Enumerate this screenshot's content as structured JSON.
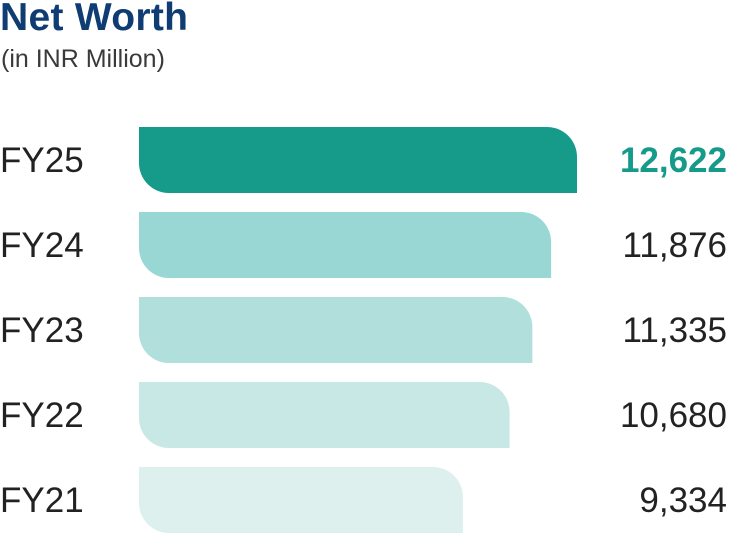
{
  "header": {
    "title": "Net Worth",
    "subtitle": "(in INR Million)"
  },
  "chart_data": {
    "type": "bar",
    "orientation": "horizontal",
    "title": "Net Worth",
    "subtitle": "(in INR Million)",
    "categories": [
      "FY25",
      "FY24",
      "FY23",
      "FY22",
      "FY21"
    ],
    "values": [
      12622,
      11876,
      11335,
      10680,
      9334
    ],
    "value_labels": [
      "12,622",
      "11,876",
      "11,335",
      "10,680",
      "9,334"
    ],
    "highlight_category": "FY25",
    "colors": [
      "#169a8a",
      "#98d7d3",
      "#b0dfdc",
      "#c8e8e5",
      "#ddf0ee"
    ],
    "highlight_label_color": "#169a8a",
    "label_color": "#222222",
    "grid": false,
    "legend": "none"
  }
}
